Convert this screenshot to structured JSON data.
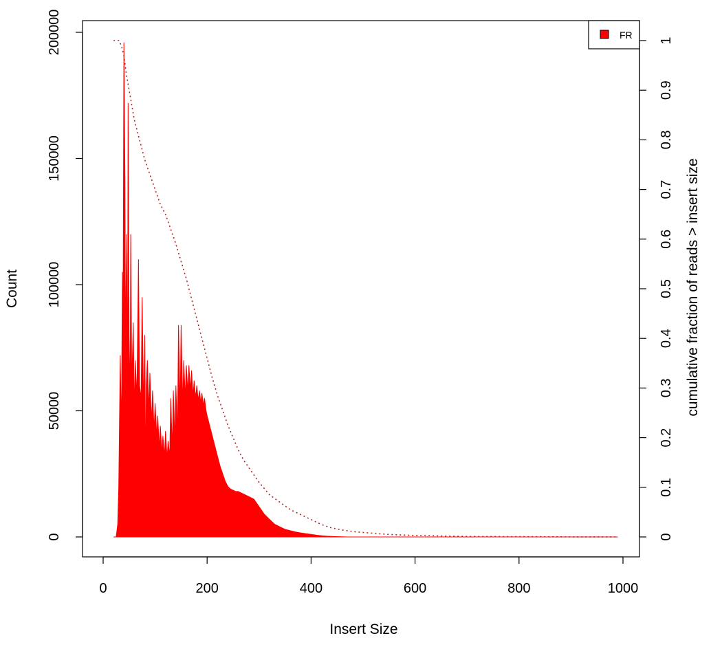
{
  "chart_data": {
    "type": "area",
    "title": "",
    "xlabel": "Insert Size",
    "ylabel": "Count",
    "y2label": "cumulative fraction of reads > insert size",
    "xlim": [
      0,
      1000
    ],
    "ylim": [
      0,
      200000
    ],
    "y2lim": [
      0,
      1
    ],
    "xticks": [
      0,
      200,
      400,
      600,
      800,
      1000
    ],
    "yticks": [
      0,
      50000,
      100000,
      150000,
      200000
    ],
    "y2ticks": [
      0,
      0.1,
      0.2,
      0.3,
      0.4,
      0.5,
      0.6,
      0.7,
      0.8,
      0.9,
      1
    ],
    "grid": false,
    "legend": {
      "position": "top-right",
      "entries": [
        {
          "label": "FR",
          "color": "#ff0000"
        }
      ]
    },
    "series": [
      {
        "name": "FR",
        "kind": "histogram",
        "color": "#ff0000",
        "x": [
          20,
          25,
          28,
          30,
          33,
          35,
          37,
          38,
          40,
          42,
          43,
          45,
          47,
          48,
          50,
          52,
          53,
          55,
          58,
          60,
          62,
          65,
          68,
          70,
          73,
          75,
          78,
          80,
          82,
          83,
          85,
          88,
          90,
          93,
          95,
          98,
          100,
          103,
          105,
          108,
          110,
          113,
          115,
          118,
          120,
          123,
          125,
          128,
          130,
          133,
          135,
          138,
          140,
          143,
          145,
          148,
          150,
          153,
          155,
          158,
          160,
          163,
          165,
          168,
          170,
          173,
          175,
          178,
          180,
          183,
          185,
          188,
          190,
          193,
          195,
          198,
          200,
          205,
          210,
          215,
          220,
          225,
          230,
          235,
          240,
          245,
          250,
          255,
          260,
          265,
          270,
          280,
          290,
          300,
          310,
          320,
          330,
          340,
          350,
          360,
          370,
          380,
          390,
          400,
          410,
          420,
          430,
          440,
          450,
          460,
          470,
          480,
          500,
          520,
          540,
          560,
          580,
          600,
          650,
          700,
          750,
          800,
          850,
          900,
          950,
          990
        ],
        "y": [
          0,
          0,
          5000,
          20000,
          72000,
          40000,
          105000,
          60000,
          196000,
          140000,
          70000,
          120000,
          60000,
          172000,
          80000,
          55000,
          120000,
          60000,
          85000,
          50000,
          70000,
          55000,
          110000,
          60000,
          55000,
          95000,
          50000,
          80000,
          20000,
          60000,
          70000,
          50000,
          65000,
          45000,
          58000,
          42000,
          53000,
          40000,
          48000,
          35000,
          44000,
          33000,
          40000,
          32000,
          42000,
          31000,
          38000,
          32000,
          55000,
          35000,
          58000,
          38000,
          60000,
          40000,
          84000,
          50000,
          84000,
          52000,
          70000,
          55000,
          68000,
          57000,
          68000,
          58000,
          66000,
          56000,
          62000,
          55000,
          60000,
          54000,
          58000,
          53000,
          57000,
          52000,
          55000,
          50000,
          48000,
          44000,
          40000,
          36000,
          32000,
          28000,
          25000,
          22000,
          20000,
          19000,
          18500,
          18000,
          18000,
          17500,
          17000,
          16000,
          15000,
          12000,
          9000,
          7000,
          5000,
          4000,
          3000,
          2500,
          2000,
          1600,
          1300,
          1000,
          700,
          500,
          300,
          200,
          100,
          50,
          0,
          0,
          0,
          0,
          0,
          0,
          0,
          0,
          0,
          0,
          0,
          0,
          0,
          0,
          0,
          0
        ]
      },
      {
        "name": "",
        "kind": "cumulative",
        "axis": "right",
        "color": "#b22222",
        "dash": "dotted",
        "x": [
          20,
          30,
          35,
          40,
          45,
          50,
          55,
          60,
          70,
          80,
          90,
          100,
          110,
          120,
          130,
          140,
          150,
          160,
          170,
          180,
          190,
          200,
          210,
          220,
          230,
          240,
          250,
          260,
          270,
          280,
          290,
          300,
          320,
          340,
          360,
          380,
          400,
          420,
          440,
          460,
          480,
          500,
          550,
          600,
          650,
          700,
          800,
          900,
          990
        ],
        "y": [
          1.0,
          1.0,
          0.99,
          0.97,
          0.93,
          0.9,
          0.87,
          0.84,
          0.8,
          0.76,
          0.73,
          0.7,
          0.67,
          0.65,
          0.62,
          0.59,
          0.555,
          0.52,
          0.48,
          0.44,
          0.4,
          0.36,
          0.32,
          0.285,
          0.255,
          0.225,
          0.2,
          0.175,
          0.155,
          0.14,
          0.125,
          0.11,
          0.085,
          0.07,
          0.055,
          0.045,
          0.035,
          0.025,
          0.018,
          0.014,
          0.011,
          0.009,
          0.005,
          0.003,
          0.002,
          0.001,
          0.0005,
          0.0002,
          0
        ]
      }
    ]
  }
}
